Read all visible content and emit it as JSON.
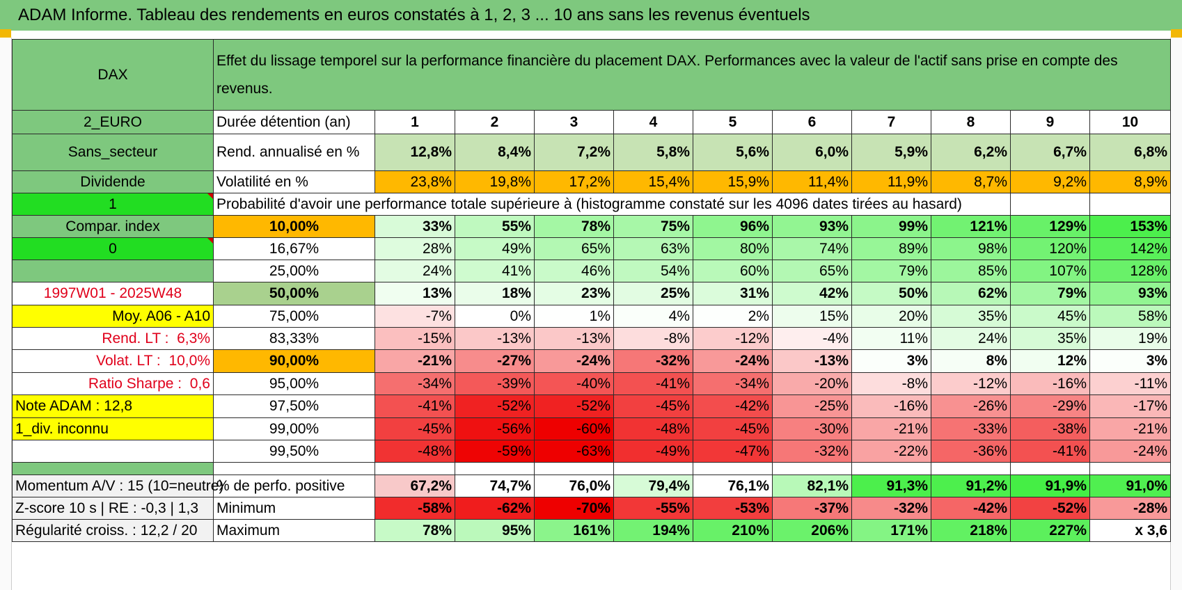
{
  "title": "ADAM Informe. Tableau des rendements en euros constatés à 1, 2, 3 ... 10 ans sans les revenus éventuels",
  "colors": {
    "header_green": "#7ec87e",
    "bright_green": "#22dd22",
    "orange": "#ffb800",
    "yellow": "#ffff00",
    "red_text": "#e0001b"
  },
  "header": {
    "asset": "DAX",
    "description": "Effet du lissage temporel sur la performance financière du placement DAX. Performances avec la valeur de l'actif sans prise en compte des revenus."
  },
  "left_labels": {
    "currency": "2_EURO",
    "sector": "Sans_secteur",
    "revenue_type": "Dividende",
    "flag_1": "1",
    "compare": "Compar. index",
    "flag_0": "0",
    "period": "1997W01 - 2025W48",
    "moyenne": "Moy. A06 - A10",
    "rend_lt_label": "Rend. LT :",
    "rend_lt_value": "6,3%",
    "volat_lt_label": "Volat. LT :",
    "volat_lt_value": "10,0%",
    "sharpe_label": "Ratio Sharpe :",
    "sharpe_value": "0,6",
    "note_adam": "Note ADAM : 12,8",
    "div_unknown": "1_div. inconnu",
    "momentum": "Momentum A/V : 15 (10=neutre)",
    "zscore": "Z-score 10 s | RE : -0,3 | 1,3",
    "regularite": "Régularité croiss. : 12,2 / 20"
  },
  "table": {
    "duration_label": "Durée détention (an)",
    "years": [
      "1",
      "2",
      "3",
      "4",
      "5",
      "6",
      "7",
      "8",
      "9",
      "10"
    ],
    "rend_label": "Rend. annualisé en %",
    "rend": [
      "12,8%",
      "8,4%",
      "7,2%",
      "5,8%",
      "5,6%",
      "6,0%",
      "5,9%",
      "6,2%",
      "6,7%",
      "6,8%"
    ],
    "vol_label": "Volatilité en %",
    "vol": [
      "23,8%",
      "19,8%",
      "17,2%",
      "15,4%",
      "15,9%",
      "11,4%",
      "11,9%",
      "8,7%",
      "9,2%",
      "8,9%"
    ],
    "prob_label": "Probabilité d'avoir une performance totale supérieure à (histogramme constaté sur les 4096 dates tirées au hasard)",
    "quantiles": [
      {
        "p": "10,00%",
        "v": [
          "33%",
          "55%",
          "78%",
          "75%",
          "96%",
          "93%",
          "99%",
          "121%",
          "129%",
          "153%"
        ]
      },
      {
        "p": "16,67%",
        "v": [
          "28%",
          "49%",
          "65%",
          "63%",
          "80%",
          "74%",
          "89%",
          "98%",
          "120%",
          "142%"
        ]
      },
      {
        "p": "25,00%",
        "v": [
          "24%",
          "41%",
          "46%",
          "54%",
          "60%",
          "65%",
          "79%",
          "85%",
          "107%",
          "128%"
        ]
      },
      {
        "p": "50,00%",
        "v": [
          "13%",
          "18%",
          "23%",
          "25%",
          "31%",
          "42%",
          "50%",
          "62%",
          "79%",
          "93%"
        ]
      },
      {
        "p": "75,00%",
        "v": [
          "-7%",
          "0%",
          "1%",
          "4%",
          "2%",
          "15%",
          "20%",
          "35%",
          "45%",
          "58%"
        ]
      },
      {
        "p": "83,33%",
        "v": [
          "-15%",
          "-13%",
          "-13%",
          "-8%",
          "-12%",
          "-4%",
          "11%",
          "24%",
          "35%",
          "19%"
        ]
      },
      {
        "p": "90,00%",
        "v": [
          "-21%",
          "-27%",
          "-24%",
          "-32%",
          "-24%",
          "-13%",
          "3%",
          "8%",
          "12%",
          "3%"
        ]
      },
      {
        "p": "95,00%",
        "v": [
          "-34%",
          "-39%",
          "-40%",
          "-41%",
          "-34%",
          "-20%",
          "-8%",
          "-12%",
          "-16%",
          "-11%"
        ]
      },
      {
        "p": "97,50%",
        "v": [
          "-41%",
          "-52%",
          "-52%",
          "-45%",
          "-42%",
          "-25%",
          "-16%",
          "-26%",
          "-29%",
          "-17%"
        ]
      },
      {
        "p": "99,00%",
        "v": [
          "-45%",
          "-56%",
          "-60%",
          "-48%",
          "-45%",
          "-30%",
          "-21%",
          "-33%",
          "-38%",
          "-21%"
        ]
      },
      {
        "p": "99,50%",
        "v": [
          "-48%",
          "-59%",
          "-63%",
          "-49%",
          "-47%",
          "-32%",
          "-22%",
          "-36%",
          "-41%",
          "-24%"
        ]
      }
    ],
    "pos_label": "% de perfo. positive",
    "pos": [
      "67,2%",
      "74,7%",
      "76,0%",
      "79,4%",
      "76,1%",
      "82,1%",
      "91,3%",
      "91,2%",
      "91,9%",
      "91,0%"
    ],
    "min_label": "Minimum",
    "min": [
      "-58%",
      "-62%",
      "-70%",
      "-55%",
      "-53%",
      "-37%",
      "-32%",
      "-42%",
      "-52%",
      "-28%"
    ],
    "max_label": "Maximum",
    "max": [
      "78%",
      "95%",
      "161%",
      "194%",
      "210%",
      "206%",
      "171%",
      "218%",
      "227%",
      "x 3,6"
    ]
  }
}
